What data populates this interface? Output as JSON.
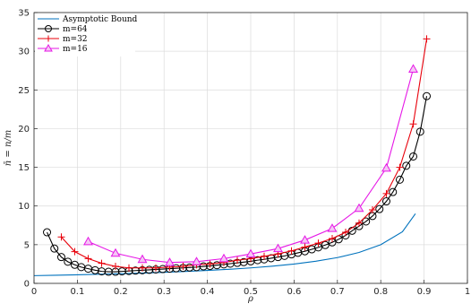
{
  "chart_data": {
    "type": "line",
    "xlabel": "ρ",
    "ylabel": "n̄ = n/m",
    "xlim": [
      0,
      1
    ],
    "ylim": [
      0,
      35
    ],
    "xticks": [
      0,
      0.1,
      0.2,
      0.3,
      0.4,
      0.5,
      0.6,
      0.7,
      0.8,
      0.9,
      1
    ],
    "xtick_labels": [
      "0",
      "0.1",
      "0.2",
      "0.3",
      "0.4",
      "0.5",
      "0.6",
      "0.7",
      "0.8",
      "0.9",
      "1"
    ],
    "yticks": [
      0,
      5,
      10,
      15,
      20,
      25,
      30,
      35
    ],
    "ytick_labels": [
      "0",
      "5",
      "10",
      "15",
      "20",
      "25",
      "30",
      "35"
    ],
    "grid": true,
    "legend_position": "top-left",
    "series": [
      {
        "name": "Asymptotic Bound",
        "color": "#0072BD",
        "marker": "none",
        "x": [
          0,
          0.05,
          0.1,
          0.15,
          0.2,
          0.25,
          0.3,
          0.35,
          0.4,
          0.45,
          0.5,
          0.55,
          0.6,
          0.65,
          0.7,
          0.75,
          0.8,
          0.85,
          0.88
        ],
        "y": [
          1.0,
          1.05,
          1.11,
          1.18,
          1.25,
          1.33,
          1.43,
          1.54,
          1.67,
          1.82,
          2.0,
          2.22,
          2.5,
          2.86,
          3.33,
          4.0,
          5.0,
          6.67,
          9.0
        ]
      },
      {
        "name": "m=64",
        "color": "#000000",
        "marker": "circle",
        "x": [
          0.03,
          0.047,
          0.063,
          0.078,
          0.094,
          0.109,
          0.125,
          0.141,
          0.156,
          0.172,
          0.188,
          0.203,
          0.219,
          0.234,
          0.25,
          0.266,
          0.281,
          0.297,
          0.313,
          0.328,
          0.344,
          0.359,
          0.375,
          0.391,
          0.406,
          0.422,
          0.438,
          0.453,
          0.469,
          0.484,
          0.5,
          0.516,
          0.531,
          0.547,
          0.563,
          0.578,
          0.594,
          0.609,
          0.625,
          0.641,
          0.656,
          0.672,
          0.688,
          0.703,
          0.719,
          0.734,
          0.75,
          0.766,
          0.781,
          0.797,
          0.813,
          0.828,
          0.844,
          0.859,
          0.875,
          0.891,
          0.906
        ],
        "y": [
          6.6,
          4.5,
          3.4,
          2.8,
          2.4,
          2.1,
          1.9,
          1.7,
          1.55,
          1.5,
          1.5,
          1.55,
          1.6,
          1.65,
          1.7,
          1.75,
          1.8,
          1.85,
          1.9,
          1.95,
          2.0,
          2.05,
          2.1,
          2.2,
          2.25,
          2.35,
          2.45,
          2.55,
          2.65,
          2.75,
          2.85,
          3.0,
          3.1,
          3.25,
          3.4,
          3.55,
          3.75,
          3.95,
          4.15,
          4.4,
          4.65,
          4.95,
          5.3,
          5.7,
          6.2,
          6.8,
          7.4,
          8.0,
          8.7,
          9.6,
          10.6,
          11.8,
          13.4,
          15.2,
          16.4,
          19.6,
          24.2
        ]
      },
      {
        "name": "m=32",
        "color": "#E8000B",
        "marker": "plus",
        "x": [
          0.063,
          0.094,
          0.125,
          0.156,
          0.188,
          0.219,
          0.25,
          0.281,
          0.313,
          0.344,
          0.375,
          0.406,
          0.438,
          0.469,
          0.5,
          0.531,
          0.563,
          0.594,
          0.625,
          0.656,
          0.688,
          0.719,
          0.75,
          0.781,
          0.813,
          0.844,
          0.875,
          0.906
        ],
        "y": [
          6.0,
          4.1,
          3.2,
          2.6,
          2.2,
          2.0,
          2.0,
          2.0,
          2.1,
          2.2,
          2.4,
          2.5,
          2.7,
          3.0,
          3.2,
          3.5,
          3.8,
          4.2,
          4.7,
          5.2,
          5.8,
          6.6,
          7.8,
          9.5,
          11.6,
          15.0,
          20.6,
          31.6
        ]
      },
      {
        "name": "m=16",
        "color": "#E617E6",
        "marker": "triangle",
        "x": [
          0.125,
          0.188,
          0.25,
          0.313,
          0.375,
          0.438,
          0.5,
          0.563,
          0.625,
          0.688,
          0.75,
          0.813,
          0.875
        ],
        "y": [
          5.4,
          3.9,
          3.1,
          2.7,
          2.8,
          3.2,
          3.8,
          4.5,
          5.6,
          7.1,
          9.7,
          14.9,
          27.7
        ]
      }
    ]
  }
}
